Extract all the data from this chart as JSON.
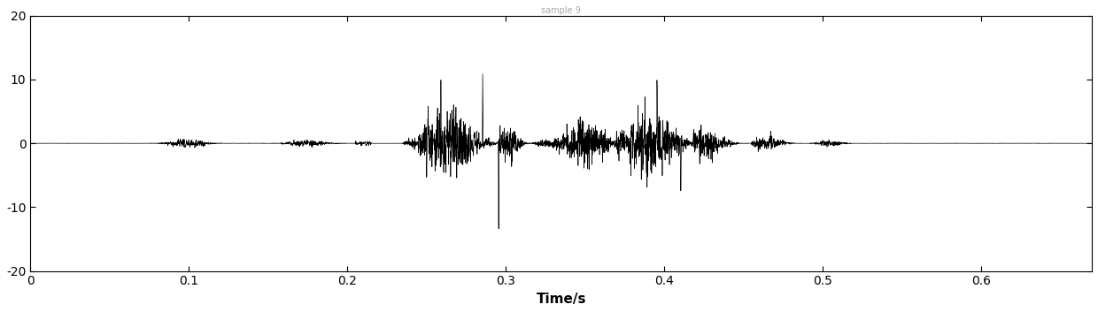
{
  "title": "sample 9",
  "xlabel": "Time/s",
  "ylabel": "",
  "xlim": [
    0,
    0.67
  ],
  "ylim": [
    -20,
    20
  ],
  "yticks": [
    -20,
    -10,
    0,
    10,
    20
  ],
  "xticks": [
    0,
    0.1,
    0.2,
    0.3,
    0.4,
    0.5,
    0.6
  ],
  "xtick_labels": [
    "0",
    "0.1",
    "0.2",
    "0.3",
    "0.4",
    "0.5",
    "0.6"
  ],
  "ytick_labels": [
    "-20",
    "-10",
    "0",
    "10",
    "20"
  ],
  "sample_rate": 8000,
  "duration": 0.67,
  "background_color": "#ffffff",
  "line_color": "#000000",
  "line_width": 0.5,
  "title_fontsize": 7,
  "label_fontsize": 11,
  "tick_fontsize": 10
}
